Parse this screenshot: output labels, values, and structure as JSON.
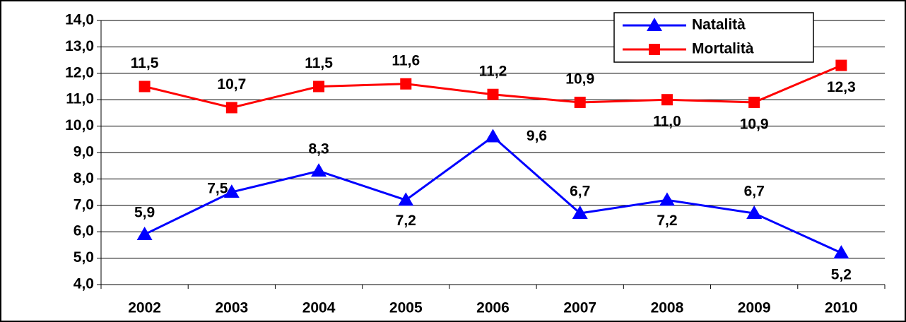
{
  "chart_data": {
    "type": "line",
    "categories": [
      "2002",
      "2003",
      "2004",
      "2005",
      "2006",
      "2007",
      "2008",
      "2009",
      "2010"
    ],
    "series": [
      {
        "name": "Natalità",
        "color": "#0000ff",
        "marker": "triangle",
        "values": [
          5.9,
          7.5,
          8.3,
          7.2,
          9.6,
          6.7,
          7.2,
          6.7,
          5.2
        ],
        "value_labels": [
          "5,9",
          "7,5",
          "8,3",
          "7,2",
          "9,6",
          "6,7",
          "7,2",
          "6,7",
          "5,2"
        ]
      },
      {
        "name": "Mortalità",
        "color": "#ff0000",
        "marker": "square",
        "values": [
          11.5,
          10.7,
          11.5,
          11.6,
          11.2,
          10.9,
          11.0,
          10.9,
          12.3
        ],
        "value_labels": [
          "11,5",
          "10,7",
          "11,5",
          "11,6",
          "11,2",
          "10,9",
          "11,0",
          "10,9",
          "12,3"
        ]
      }
    ],
    "ylim": [
      4,
      14
    ],
    "yticks": [
      {
        "value": 4,
        "label": "4,0"
      },
      {
        "value": 5,
        "label": "5,0"
      },
      {
        "value": 6,
        "label": "6,0"
      },
      {
        "value": 7,
        "label": "7,0"
      },
      {
        "value": 8,
        "label": "8,0"
      },
      {
        "value": 9,
        "label": "9,0"
      },
      {
        "value": 10,
        "label": "10,0"
      },
      {
        "value": 11,
        "label": "11,0"
      },
      {
        "value": 12,
        "label": "12,0"
      },
      {
        "value": 13,
        "label": "13,0"
      },
      {
        "value": 14,
        "label": "14,0"
      }
    ],
    "grid": true,
    "legend": "upper right"
  }
}
